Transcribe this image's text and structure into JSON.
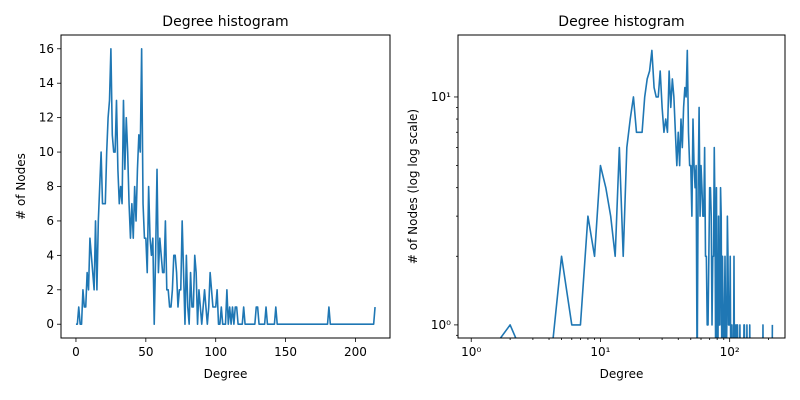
{
  "chart_data": [
    {
      "type": "line",
      "title": "Degree histogram",
      "xlabel": "Degree",
      "ylabel": "# of Nodes",
      "xscale": "linear",
      "yscale": "linear",
      "xlim": [
        -10.7,
        224.7
      ],
      "ylim": [
        -0.8,
        16.8
      ],
      "xticks": [
        0,
        50,
        100,
        150,
        200
      ],
      "yticks": [
        0,
        2,
        4,
        6,
        8,
        10,
        12,
        14,
        16
      ],
      "grid": false,
      "color": "#1f77b4"
    },
    {
      "type": "line",
      "title": "Degree histogram",
      "xlabel": "Degree",
      "ylabel": "# of Nodes (log log scale)",
      "xscale": "log",
      "yscale": "log",
      "xlim": [
        0.79,
        268
      ],
      "ylim": [
        0.876,
        18.7
      ],
      "xticks": [
        1,
        10,
        100
      ],
      "xtick_labels": [
        "10⁰",
        "10¹",
        "10²"
      ],
      "yticks": [
        1,
        10
      ],
      "ytick_labels": [
        "10⁰",
        "10¹"
      ],
      "grid": false,
      "color": "#1f77b4"
    }
  ],
  "series_values": {
    "degree": [
      0,
      1,
      2,
      3,
      4,
      5,
      6,
      7,
      8,
      9,
      10,
      11,
      12,
      13,
      14,
      15,
      16,
      17,
      18,
      19,
      20,
      21,
      22,
      23,
      24,
      25,
      26,
      27,
      28,
      29,
      30,
      31,
      32,
      33,
      34,
      35,
      36,
      37,
      38,
      39,
      40,
      41,
      42,
      43,
      44,
      45,
      46,
      47,
      48,
      49,
      50,
      51,
      52,
      53,
      54,
      55,
      56,
      57,
      58,
      59,
      60,
      61,
      62,
      63,
      64,
      65,
      66,
      67,
      68,
      69,
      70,
      71,
      72,
      73,
      74,
      75,
      76,
      77,
      78,
      79,
      80,
      81,
      82,
      83,
      84,
      85,
      86,
      87,
      88,
      89,
      90,
      91,
      92,
      93,
      94,
      95,
      96,
      97,
      98,
      99,
      100,
      101,
      102,
      103,
      104,
      105,
      106,
      107,
      108,
      109,
      110,
      111,
      112,
      113,
      114,
      115,
      116,
      117,
      118,
      119,
      120,
      121,
      122,
      123,
      124,
      125,
      126,
      127,
      128,
      129,
      130,
      131,
      132,
      133,
      134,
      135,
      136,
      137,
      138,
      139,
      140,
      141,
      142,
      143,
      144,
      145,
      146,
      147,
      148,
      149,
      150,
      151,
      152,
      153,
      154,
      155,
      156,
      157,
      158,
      159,
      160,
      161,
      162,
      163,
      164,
      165,
      166,
      167,
      168,
      169,
      170,
      171,
      172,
      173,
      174,
      175,
      176,
      177,
      178,
      179,
      180,
      181,
      182,
      183,
      184,
      185,
      186,
      187,
      188,
      189,
      190,
      191,
      192,
      193,
      194,
      195,
      196,
      197,
      198,
      199,
      200,
      201,
      202,
      203,
      204,
      205,
      206,
      207,
      208,
      209,
      210,
      211,
      212,
      213,
      214
    ],
    "count": [
      0,
      0,
      1,
      0,
      0,
      2,
      1,
      1,
      3,
      2,
      5,
      4,
      3,
      2,
      6,
      2,
      6,
      8,
      10,
      7,
      7,
      7,
      10,
      12,
      13,
      16,
      11,
      10,
      10,
      13,
      9,
      7,
      8,
      7,
      13,
      9,
      12,
      10,
      7,
      5,
      7,
      5,
      8,
      6,
      9,
      11,
      10,
      16,
      7,
      5,
      5,
      3,
      8,
      5,
      4,
      5,
      0,
      4,
      9,
      3,
      5,
      4,
      3,
      3,
      6,
      2,
      2,
      1,
      1,
      2,
      4,
      4,
      3,
      1,
      2,
      2,
      6,
      3,
      0,
      4,
      1,
      0,
      3,
      1,
      1,
      4,
      3,
      0,
      2,
      1,
      0,
      1,
      2,
      1,
      0,
      1,
      3,
      2,
      1,
      1,
      1,
      2,
      0,
      0,
      1,
      0,
      0,
      0,
      2,
      0,
      1,
      0,
      1,
      0,
      1,
      1,
      0,
      0,
      0,
      0,
      1,
      0,
      0,
      0,
      0,
      0,
      0,
      0,
      0,
      1,
      1,
      0,
      0,
      0,
      0,
      0,
      1,
      0,
      0,
      0,
      0,
      0,
      0,
      1,
      0,
      0,
      0,
      0,
      0,
      0,
      0,
      0,
      0,
      0,
      0,
      0,
      0,
      0,
      0,
      0,
      0,
      0,
      0,
      0,
      0,
      0,
      0,
      0,
      0,
      0,
      0,
      0,
      0,
      0,
      0,
      0,
      0,
      0,
      0,
      0,
      0,
      1,
      0,
      0,
      0,
      0,
      0,
      0,
      0,
      0,
      0,
      0,
      0,
      0,
      0,
      0,
      0,
      0,
      0,
      0,
      0,
      0,
      0,
      0,
      0,
      0,
      0,
      0,
      0,
      0,
      0,
      0,
      0,
      0,
      1
    ]
  }
}
